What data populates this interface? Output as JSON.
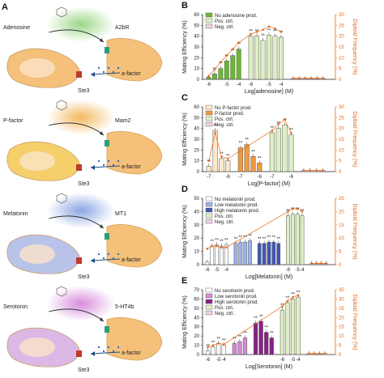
{
  "colors": {
    "orange_axis": "#e46a1a",
    "pos_ctrl": "#dff0c3",
    "neg_ctrl": "#f0d2df",
    "adenosine": "#6ab82f",
    "pfactor_fill": "#f09a3e",
    "melatonin": "#6f86cf",
    "serotonin": "#8b1f88"
  },
  "panels_left": [
    {
      "letter": "A",
      "ligand": "Adenosine",
      "receptor": "A2bR",
      "factor": "a-factor",
      "ste": "Ste3",
      "glow": "#8fd27a"
    },
    {
      "letter": "",
      "ligand": "P-factor",
      "receptor": "Mam2",
      "factor": "a-factor",
      "ste": "Ste3",
      "glow": "#f2b14d"
    },
    {
      "letter": "",
      "ligand": "Melatonin",
      "receptor": "MT1",
      "factor": "a-factor",
      "ste": "Ste3",
      "glow": "#7e9be0"
    },
    {
      "letter": "",
      "ligand": "Serotonin",
      "receptor": "5-HT4b",
      "factor": "a-factor",
      "ste": "Ste3",
      "glow": "#d27fd8"
    }
  ],
  "chart_data": [
    {
      "letter": "B",
      "type": "bar",
      "ylabel": "Mating Efficiency (%)",
      "ylabel2": "Diploid Frequency (%)",
      "xlabel": "Log[adenosine] (M)",
      "yticks": [
        "0",
        "10",
        "20",
        "30",
        "40",
        "50",
        "60"
      ],
      "y2ticks": [
        "0",
        "5",
        "10",
        "15",
        "20",
        "25",
        "30"
      ],
      "ylim": [
        0,
        60
      ],
      "legend": [
        {
          "name": "No adenosine prod.",
          "color": "#6ab82f"
        },
        {
          "name": "Pos. ctrl.",
          "color": "#dff0c3"
        },
        {
          "name": "Neg. ctrl.",
          "color": "#f0d2df"
        }
      ],
      "groups": [
        {
          "color": "#6ab82f",
          "values": [
            2,
            5,
            10,
            17,
            22,
            28
          ],
          "ticks": [
            "-6",
            "-5",
            "-4"
          ],
          "line": [
            3,
            9,
            16,
            22,
            28,
            34
          ]
        },
        {
          "color": "#dff0c3",
          "values": [
            40,
            40,
            36,
            41,
            40,
            39
          ],
          "ticks": [
            "-6",
            "-5",
            "-4"
          ],
          "line": [
            42,
            44,
            46,
            49,
            47,
            44
          ]
        },
        {
          "color": "#f0d2df",
          "values": [
            0.5,
            0.5,
            0.5,
            0.5,
            0.5,
            0.5
          ],
          "ticks": [],
          "line": [
            1,
            1,
            1,
            1,
            1,
            1
          ]
        }
      ],
      "sig": "**"
    },
    {
      "letter": "C",
      "type": "bar",
      "ylabel": "Mating Efficiency (%)",
      "ylabel2": "Diploid Frequency (%)",
      "xlabel": "Log[P-factor] (M)",
      "yticks": [
        "0",
        "10",
        "20",
        "30",
        "40",
        "50",
        "60"
      ],
      "y2ticks": [
        "0",
        "5",
        "10",
        "15",
        "20",
        "25",
        "30"
      ],
      "ylim": [
        0,
        60
      ],
      "legend": [
        {
          "name": "No P-factor prod.",
          "color": "#fde8c8"
        },
        {
          "name": "P-factor prod.",
          "color": "#f09a3e"
        },
        {
          "name": "Pos. ctrl.",
          "color": "#dff0c3"
        },
        {
          "name": "Neg. ctrl.",
          "color": "#f0d2df"
        }
      ],
      "groups": [
        {
          "color": "#fde8c8",
          "values": [
            5,
            38,
            12,
            10
          ],
          "ticks": [
            "-7",
            "-6"
          ],
          "line": [
            10,
            36,
            14,
            12
          ]
        },
        {
          "color": "#f09a3e",
          "values": [
            22,
            25,
            14,
            8
          ],
          "ticks": [
            "-7",
            "-6"
          ],
          "line": [
            null,
            null,
            null,
            null
          ]
        },
        {
          "color": "#dff0c3",
          "values": [
            36,
            40,
            43,
            34
          ],
          "ticks": [
            "-7",
            "-6"
          ],
          "line": [
            38,
            44,
            48,
            36
          ]
        },
        {
          "color": "#f0d2df",
          "values": [
            1,
            1,
            1,
            1
          ],
          "ticks": [],
          "line": [
            1,
            1,
            1,
            1
          ]
        }
      ],
      "sig": "**"
    },
    {
      "letter": "D",
      "type": "bar",
      "ylabel": "Mating Efficiency (%)",
      "ylabel2": "Diploid Frequency (%)",
      "xlabel": "Log[Melatonin] (M)",
      "yticks": [
        "0",
        "10",
        "20",
        "30",
        "40",
        "50"
      ],
      "y2ticks": [
        "0",
        "5",
        "10",
        "15",
        "20",
        "25"
      ],
      "ylim": [
        0,
        50
      ],
      "legend": [
        {
          "name": "No melatonin prod.",
          "color": "#ffffff"
        },
        {
          "name": "Low melatonin prod.",
          "color": "#9db3e8"
        },
        {
          "name": "High melatonin prod.",
          "color": "#3f56b5"
        },
        {
          "name": "Pos. ctrl.",
          "color": "#dff0c3"
        },
        {
          "name": "Neg. ctrl.",
          "color": "#f0d2df"
        }
      ],
      "groups": [
        {
          "color": "#ffffff",
          "values": [
            2,
            14,
            15,
            14,
            15
          ],
          "ticks": [
            "-6",
            "-5",
            "-4"
          ],
          "line": [
            12,
            14,
            14,
            13,
            13
          ]
        },
        {
          "color": "#9db3e8",
          "values": [
            16,
            17,
            17,
            18
          ],
          "ticks": [],
          "line": [
            null,
            null,
            null,
            null
          ]
        },
        {
          "color": "#3f56b5",
          "values": [
            16,
            16,
            17,
            17,
            16
          ],
          "ticks": [],
          "line": [
            null,
            null,
            null,
            null,
            null
          ]
        },
        {
          "color": "#dff0c3",
          "values": [
            37,
            38,
            38,
            37
          ],
          "ticks": [
            "-6",
            "-5",
            "-4"
          ],
          "line": [
            40,
            42,
            42,
            40
          ]
        },
        {
          "color": "#f0d2df",
          "values": [
            1,
            1,
            1,
            1
          ],
          "ticks": [],
          "line": [
            1,
            1,
            1,
            1
          ]
        }
      ],
      "sig": "**"
    },
    {
      "letter": "E",
      "type": "bar",
      "ylabel": "Mating Efficiency (%)",
      "ylabel2": "Diploid Frequency (%)",
      "xlabel": "Log[Serotonin] (M)",
      "yticks": [
        "0",
        "10",
        "20",
        "30",
        "40",
        "50",
        "60",
        "70"
      ],
      "y2ticks": [
        "0",
        "5",
        "10",
        "15",
        "20",
        "25",
        "30",
        "35"
      ],
      "ylim": [
        0,
        70
      ],
      "legend": [
        {
          "name": "No serotonin prod.",
          "color": "#ffffff"
        },
        {
          "name": "Low serotonin prod.",
          "color": "#d48ad3"
        },
        {
          "name": "High serotonin prod.",
          "color": "#8b1f88"
        },
        {
          "name": "Pos. ctrl.",
          "color": "#dff0c3"
        },
        {
          "name": "Neg. ctrl.",
          "color": "#f0d2df"
        }
      ],
      "groups": [
        {
          "color": "#ffffff",
          "values": [
            4,
            8,
            12,
            10
          ],
          "ticks": [
            "-6",
            "-5",
            "-4"
          ],
          "line": [
            8,
            10,
            12,
            11
          ]
        },
        {
          "color": "#d48ad3",
          "values": [
            12,
            14,
            18
          ],
          "ticks": [],
          "line": [
            null,
            null,
            null
          ]
        },
        {
          "color": "#8b1f88",
          "values": [
            34,
            36,
            24,
            18
          ],
          "ticks": [],
          "line": [
            null,
            null,
            null,
            null
          ]
        },
        {
          "color": "#dff0c3",
          "values": [
            48,
            56,
            60,
            62
          ],
          "ticks": [
            "-6",
            "-5",
            "-4"
          ],
          "line": [
            52,
            58,
            62,
            64
          ]
        },
        {
          "color": "#f0d2df",
          "values": [
            1,
            1,
            1,
            1
          ],
          "ticks": [],
          "line": [
            1,
            1,
            1,
            1
          ]
        }
      ],
      "sig": "**"
    }
  ]
}
